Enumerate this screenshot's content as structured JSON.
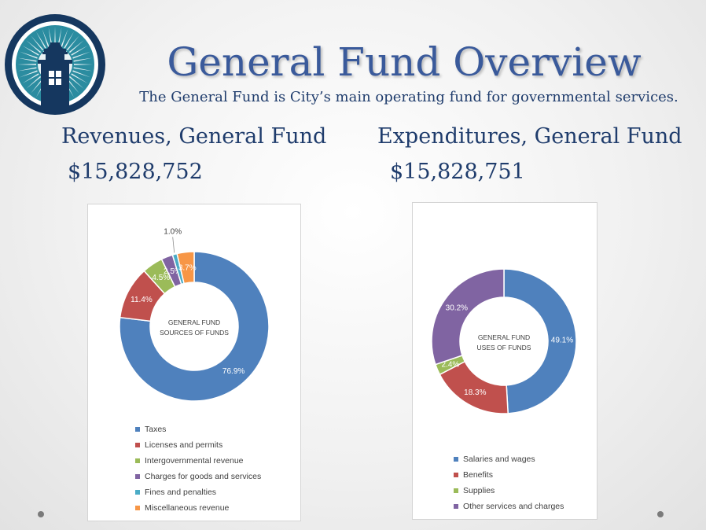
{
  "slide": {
    "title": "General Fund Overview",
    "subtitle": "The General Fund is City’s main operating fund for governmental services."
  },
  "revenues": {
    "heading": "Revenues, General Fund",
    "amount": "$15,828,752"
  },
  "expenditures": {
    "heading": "Expenditures, General Fund",
    "amount": "$15,828,751"
  },
  "colors": {
    "title": "#3a5a9b",
    "text": "#1f3c6c",
    "logo_navy": "#15375f",
    "logo_teal": "#2b8ca0"
  },
  "chart_data": [
    {
      "type": "pie",
      "style": "donut",
      "center_label": [
        "GENERAL FUND",
        "SOURCES OF FUNDS"
      ],
      "series": [
        {
          "name": "Taxes",
          "value": 76.9,
          "label": "76.9%",
          "color": "#4f81bd"
        },
        {
          "name": "Licenses and permits",
          "value": 11.4,
          "label": "11.4%",
          "color": "#c0504d"
        },
        {
          "name": "Intergovernmental revenue",
          "value": 4.5,
          "label": "4.5%",
          "color": "#9bbb59"
        },
        {
          "name": "Charges for goods and services",
          "value": 2.5,
          "label": "2.5%",
          "color": "#8064a2"
        },
        {
          "name": "Fines and penalties",
          "value": 1.0,
          "label": "1.0%",
          "color": "#4bacc6"
        },
        {
          "name": "Miscellaneous revenue",
          "value": 3.7,
          "label": "3.7%",
          "color": "#f79646"
        }
      ],
      "legend_position": "bottom"
    },
    {
      "type": "pie",
      "style": "donut",
      "center_label": [
        "GENERAL FUND",
        "USES OF FUNDS"
      ],
      "series": [
        {
          "name": "Salaries and wages",
          "value": 49.1,
          "label": "49.1%",
          "color": "#4f81bd"
        },
        {
          "name": "Benefits",
          "value": 18.3,
          "label": "18.3%",
          "color": "#c0504d"
        },
        {
          "name": "Supplies",
          "value": 2.4,
          "label": "2.4%",
          "color": "#9bbb59"
        },
        {
          "name": "Other services and charges",
          "value": 30.2,
          "label": "30.2%",
          "color": "#8064a2"
        }
      ],
      "legend_position": "bottom"
    }
  ]
}
